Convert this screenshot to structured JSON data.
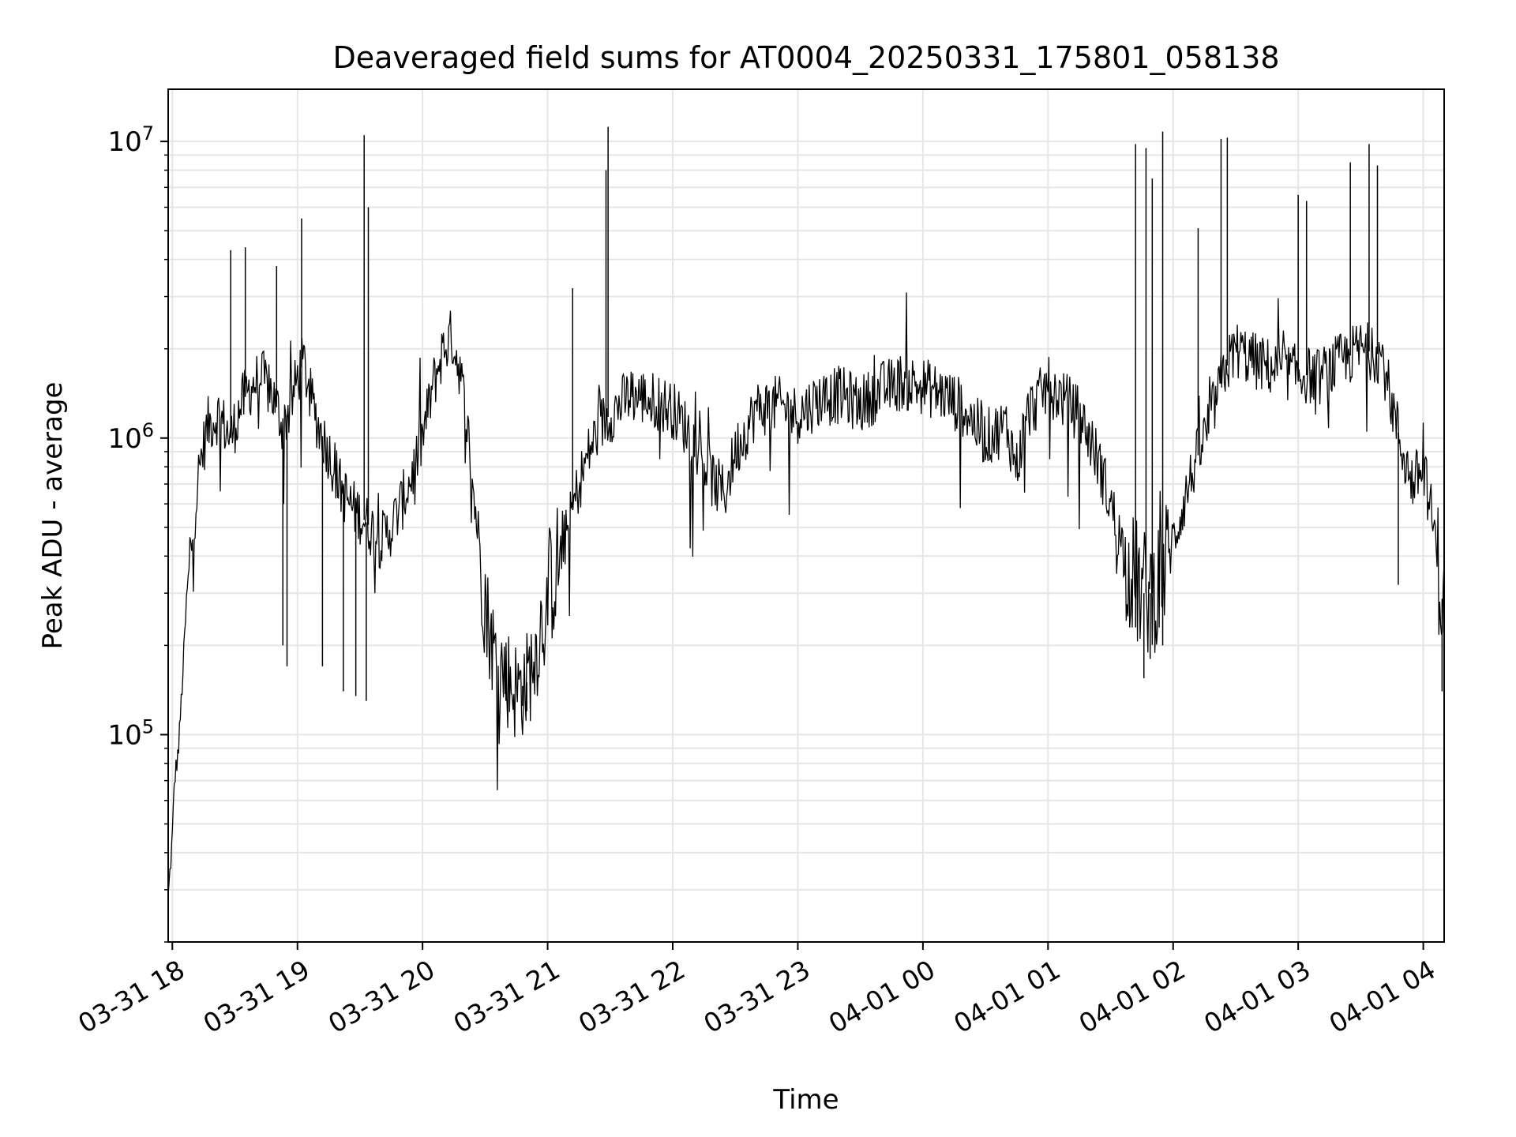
{
  "chart_data": {
    "type": "line",
    "title": "Deaveraged field sums for AT0004_20250331_175801_058138",
    "xlabel": "Time",
    "ylabel": "Peak ADU - average",
    "yscale": "log",
    "ylim": [
      20000,
      15000000
    ],
    "xlim": [
      "2025-03-31 17:58",
      "2025-04-01 04:10"
    ],
    "grid": true,
    "line_color": "#000000",
    "x_tick_labels": [
      "03-31 18",
      "03-31 19",
      "03-31 20",
      "03-31 21",
      "03-31 22",
      "03-31 23",
      "04-01 00",
      "04-01 01",
      "04-01 02",
      "04-01 03",
      "04-01 04"
    ],
    "x_ticks": [
      "2025-03-31 18:00",
      "2025-03-31 19:00",
      "2025-03-31 20:00",
      "2025-03-31 21:00",
      "2025-03-31 22:00",
      "2025-03-31 23:00",
      "2025-04-01 00:00",
      "2025-04-01 01:00",
      "2025-04-01 02:00",
      "2025-04-01 03:00",
      "2025-04-01 04:00"
    ],
    "y_ticks": [
      {
        "value": 100000,
        "mantissa": "10",
        "exponent": "5"
      },
      {
        "value": 1000000,
        "mantissa": "10",
        "exponent": "6"
      },
      {
        "value": 10000000,
        "mantissa": "10",
        "exponent": "7"
      }
    ],
    "series": [
      {
        "points": [
          [
            "2025-03-31 17:58",
            28000
          ],
          [
            "2025-03-31 18:00",
            45000
          ],
          [
            "2025-03-31 18:01",
            70000
          ],
          [
            "2025-03-31 18:03",
            90000
          ],
          [
            "2025-03-31 18:05",
            160000
          ],
          [
            "2025-03-31 18:07",
            300000
          ],
          [
            "2025-03-31 18:10",
            500000
          ],
          [
            "2025-03-31 18:13",
            800000
          ],
          [
            "2025-03-31 18:17",
            1100000
          ],
          [
            "2025-03-31 18:22",
            1200000
          ],
          [
            "2025-03-31 18:28",
            1000000
          ],
          [
            "2025-03-31 18:33",
            1300000
          ],
          [
            "2025-03-31 18:38",
            1500000
          ],
          [
            "2025-03-31 18:43",
            1600000
          ],
          [
            "2025-03-31 18:48",
            1400000
          ],
          [
            "2025-03-31 18:53",
            1100000
          ],
          [
            "2025-03-31 18:57",
            1300000
          ],
          [
            "2025-03-31 19:00",
            1600000
          ],
          [
            "2025-03-31 19:03",
            1800000
          ],
          [
            "2025-03-31 19:06",
            1400000
          ],
          [
            "2025-03-31 19:10",
            1100000
          ],
          [
            "2025-03-31 19:15",
            900000
          ],
          [
            "2025-03-31 19:20",
            700000
          ],
          [
            "2025-03-31 19:25",
            600000
          ],
          [
            "2025-03-31 19:30",
            550000
          ],
          [
            "2025-03-31 19:35",
            500000
          ],
          [
            "2025-03-31 19:40",
            450000
          ],
          [
            "2025-03-31 19:45",
            500000
          ],
          [
            "2025-03-31 19:50",
            600000
          ],
          [
            "2025-03-31 19:55",
            750000
          ],
          [
            "2025-03-31 20:00",
            1000000
          ],
          [
            "2025-03-31 20:05",
            1500000
          ],
          [
            "2025-03-31 20:10",
            2000000
          ],
          [
            "2025-03-31 20:14",
            2200000
          ],
          [
            "2025-03-31 20:18",
            1700000
          ],
          [
            "2025-03-31 20:22",
            1000000
          ],
          [
            "2025-03-31 20:25",
            600000
          ],
          [
            "2025-03-31 20:28",
            400000
          ],
          [
            "2025-03-31 20:31",
            250000
          ],
          [
            "2025-03-31 20:35",
            180000
          ],
          [
            "2025-03-31 20:40",
            160000
          ],
          [
            "2025-03-31 20:45",
            140000
          ],
          [
            "2025-03-31 20:50",
            150000
          ],
          [
            "2025-03-31 20:55",
            200000
          ],
          [
            "2025-03-31 21:00",
            300000
          ],
          [
            "2025-03-31 21:05",
            380000
          ],
          [
            "2025-03-31 21:10",
            500000
          ],
          [
            "2025-03-31 21:15",
            700000
          ],
          [
            "2025-03-31 21:20",
            900000
          ],
          [
            "2025-03-31 21:25",
            1100000
          ],
          [
            "2025-03-31 21:30",
            1200000
          ],
          [
            "2025-03-31 21:40",
            1400000
          ],
          [
            "2025-03-31 21:50",
            1350000
          ],
          [
            "2025-03-31 22:00",
            1250000
          ],
          [
            "2025-03-31 22:10",
            1000000
          ],
          [
            "2025-03-31 22:20",
            700000
          ],
          [
            "2025-03-31 22:25",
            650000
          ],
          [
            "2025-03-31 22:30",
            900000
          ],
          [
            "2025-03-31 22:40",
            1250000
          ],
          [
            "2025-03-31 22:50",
            1300000
          ],
          [
            "2025-03-31 23:00",
            1200000
          ],
          [
            "2025-03-31 23:10",
            1350000
          ],
          [
            "2025-03-31 23:20",
            1400000
          ],
          [
            "2025-03-31 23:30",
            1300000
          ],
          [
            "2025-03-31 23:40",
            1450000
          ],
          [
            "2025-03-31 23:50",
            1550000
          ],
          [
            "2025-04-01 00:00",
            1500000
          ],
          [
            "2025-04-01 00:10",
            1400000
          ],
          [
            "2025-04-01 00:20",
            1250000
          ],
          [
            "2025-04-01 00:30",
            1000000
          ],
          [
            "2025-04-01 00:40",
            1100000
          ],
          [
            "2025-04-01 00:45",
            800000
          ],
          [
            "2025-04-01 00:50",
            1200000
          ],
          [
            "2025-04-01 01:00",
            1500000
          ],
          [
            "2025-04-01 01:05",
            1400000
          ],
          [
            "2025-04-01 01:10",
            1300000
          ],
          [
            "2025-04-01 01:15",
            1200000
          ],
          [
            "2025-04-01 01:20",
            1000000
          ],
          [
            "2025-04-01 01:25",
            800000
          ],
          [
            "2025-04-01 01:30",
            600000
          ],
          [
            "2025-04-01 01:35",
            450000
          ],
          [
            "2025-04-01 01:40",
            350000
          ],
          [
            "2025-04-01 01:45",
            300000
          ],
          [
            "2025-04-01 01:50",
            300000
          ],
          [
            "2025-04-01 01:55",
            350000
          ],
          [
            "2025-04-01 02:00",
            450000
          ],
          [
            "2025-04-01 02:05",
            600000
          ],
          [
            "2025-04-01 02:10",
            800000
          ],
          [
            "2025-04-01 02:15",
            1000000
          ],
          [
            "2025-04-01 02:20",
            1300000
          ],
          [
            "2025-04-01 02:25",
            1700000
          ],
          [
            "2025-04-01 02:30",
            2000000
          ],
          [
            "2025-04-01 02:40",
            1800000
          ],
          [
            "2025-04-01 02:50",
            1700000
          ],
          [
            "2025-04-01 03:00",
            1650000
          ],
          [
            "2025-04-01 03:10",
            1600000
          ],
          [
            "2025-04-01 03:20",
            1800000
          ],
          [
            "2025-04-01 03:30",
            2000000
          ],
          [
            "2025-04-01 03:40",
            1900000
          ],
          [
            "2025-04-01 03:45",
            1300000
          ],
          [
            "2025-04-01 03:50",
            900000
          ],
          [
            "2025-04-01 03:55",
            700000
          ],
          [
            "2025-04-01 04:00",
            800000
          ],
          [
            "2025-04-01 04:05",
            500000
          ],
          [
            "2025-04-01 04:10",
            250000
          ]
        ]
      }
    ],
    "spikes": [
      [
        "2025-03-31 18:28",
        4300000
      ],
      [
        "2025-03-31 18:35",
        4400000
      ],
      [
        "2025-03-31 18:50",
        3800000
      ],
      [
        "2025-03-31 19:02",
        5500000
      ],
      [
        "2025-03-31 19:32",
        10500000
      ],
      [
        "2025-03-31 19:34",
        6000000
      ],
      [
        "2025-03-31 21:12",
        3200000
      ],
      [
        "2025-03-31 21:28",
        8000000
      ],
      [
        "2025-03-31 21:29",
        11200000
      ],
      [
        "2025-04-01 01:42",
        9800000
      ],
      [
        "2025-04-01 01:47",
        9500000
      ],
      [
        "2025-04-01 01:50",
        7500000
      ],
      [
        "2025-04-01 01:55",
        10800000
      ],
      [
        "2025-04-01 02:12",
        5100000
      ],
      [
        "2025-04-01 02:23",
        10200000
      ],
      [
        "2025-04-01 02:26",
        10300000
      ],
      [
        "2025-04-01 03:00",
        6600000
      ],
      [
        "2025-04-01 03:04",
        6300000
      ],
      [
        "2025-04-01 03:25",
        8500000
      ],
      [
        "2025-04-01 03:34",
        9800000
      ],
      [
        "2025-04-01 03:38",
        8300000
      ]
    ],
    "dips": [
      [
        "2025-03-31 18:53",
        200000
      ],
      [
        "2025-03-31 18:55",
        170000
      ],
      [
        "2025-03-31 19:12",
        170000
      ],
      [
        "2025-03-31 19:22",
        140000
      ],
      [
        "2025-03-31 19:28",
        135000
      ],
      [
        "2025-03-31 19:33",
        130000
      ],
      [
        "2025-03-31 20:40",
        130000
      ],
      [
        "2025-03-31 20:48",
        125000
      ],
      [
        "2025-03-31 20:50",
        120000
      ],
      [
        "2025-04-01 01:42",
        230000
      ],
      [
        "2025-04-01 01:46",
        155000
      ],
      [
        "2025-04-01 01:49",
        180000
      ],
      [
        "2025-04-01 01:55",
        200000
      ],
      [
        "2025-04-01 03:48",
        320000
      ],
      [
        "2025-04-01 04:09",
        140000
      ]
    ]
  }
}
